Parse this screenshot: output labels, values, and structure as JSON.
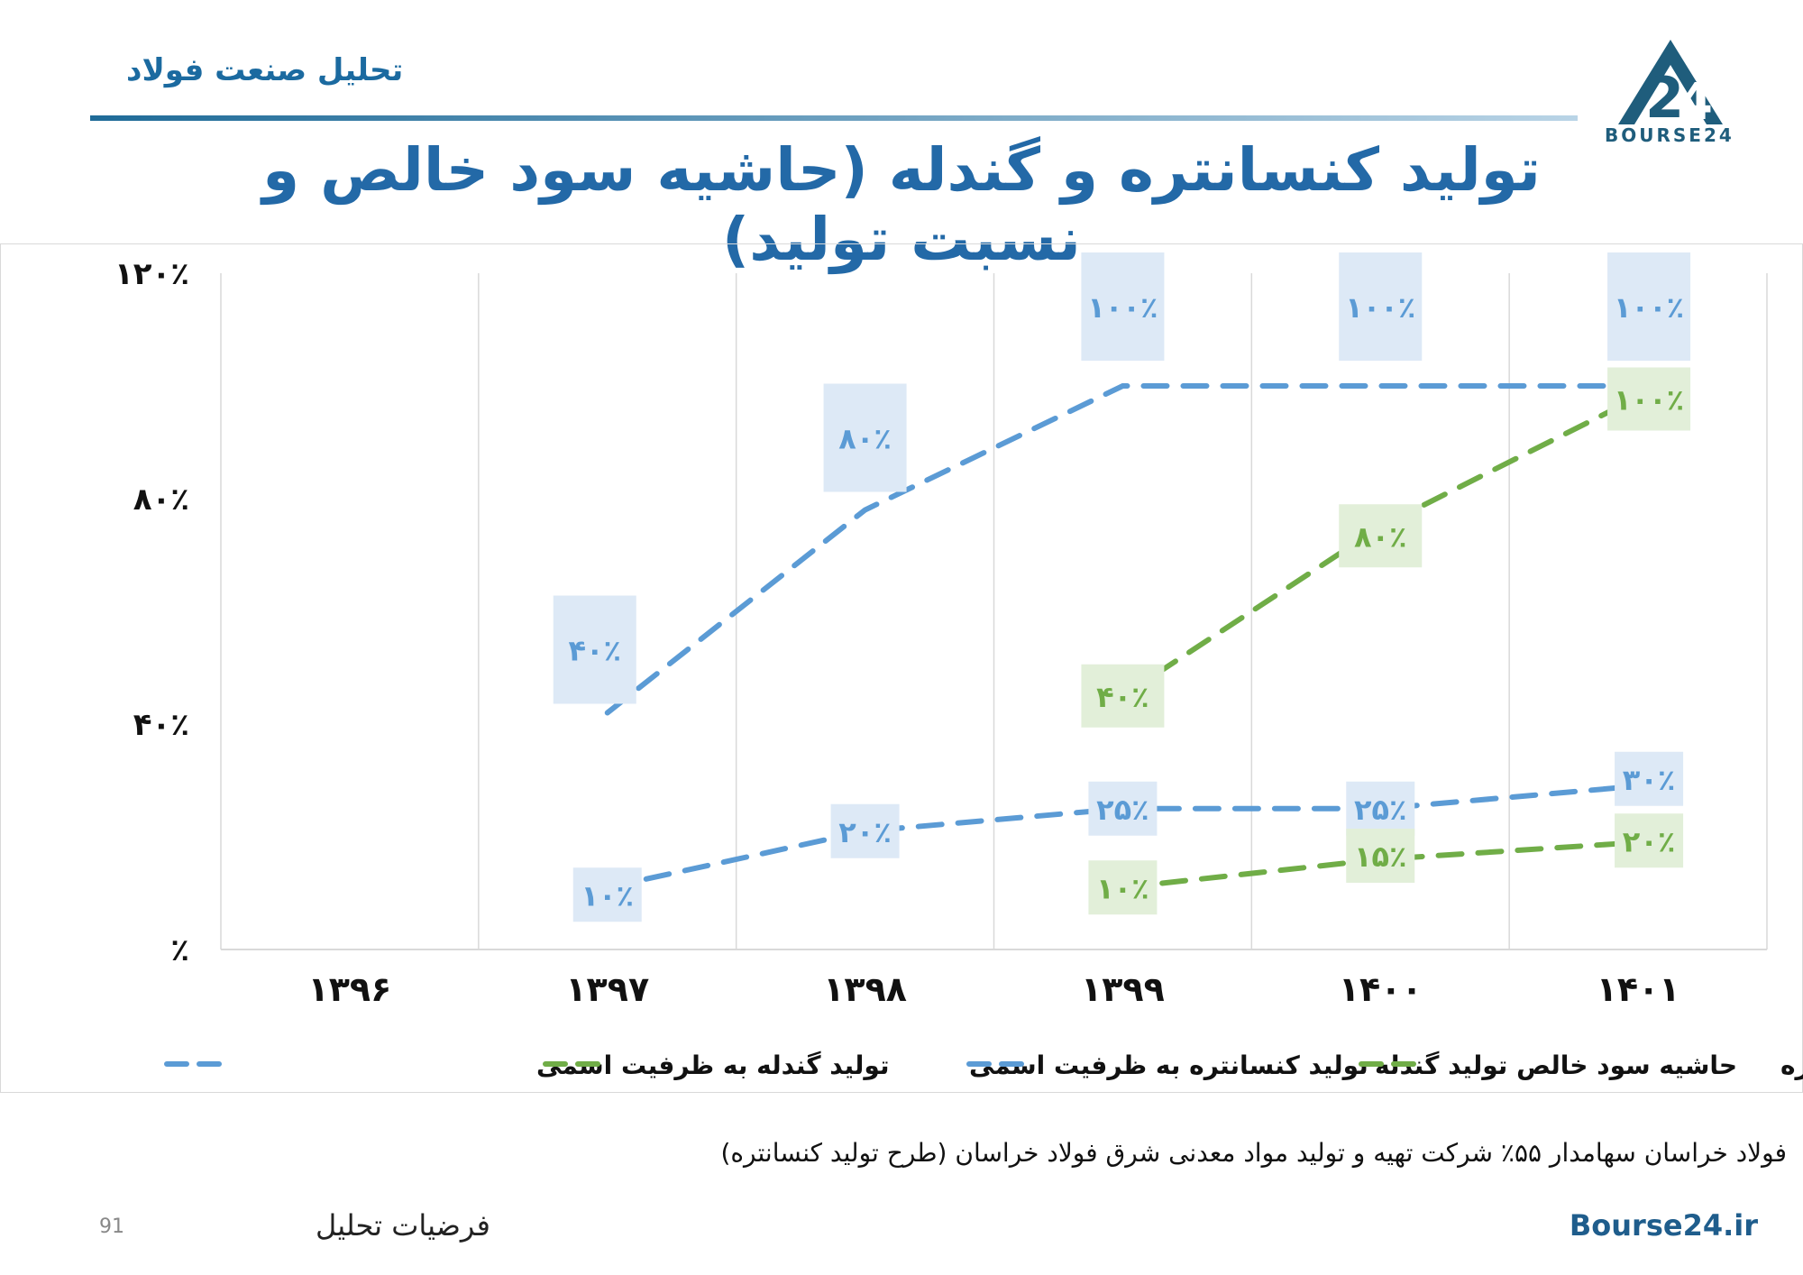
{
  "header": {
    "subtitle": "تحلیل صنعت فولاد",
    "logo_text": "BOURSE24"
  },
  "title": "تولید کنسانتره و گندله (حاشیه سود خالص و نسبت تولید)",
  "colors": {
    "blue": "#5b9bd5",
    "green": "#70ad47",
    "blue_label_bg": "#dde9f6",
    "green_label_bg": "#e2efd9",
    "title": "#2369a7"
  },
  "chart_data": {
    "type": "line",
    "categories": [
      "۱۳۹۶",
      "۱۳۹۷",
      "۱۳۹۸",
      "۱۳۹۹",
      "۱۴۰۰",
      "۱۴۰۱"
    ],
    "y_ticks": [
      "٪",
      "۴۰٪",
      "۸۰٪",
      "۱۲۰٪"
    ],
    "ylim": [
      0,
      120
    ],
    "grid": "vertical",
    "legend_position": "bottom",
    "series": [
      {
        "name": "تولید گندله به ظرفیت اسمی",
        "color": "#5b9bd5",
        "label_bg": "#dde9f6",
        "values": [
          null,
          40,
          80,
          100,
          100,
          100
        ],
        "plot_values": [
          null,
          42,
          78,
          100,
          100,
          100
        ],
        "labels": [
          null,
          "۴۰٪",
          "۸۰٪",
          "۱۰۰٪",
          "۱۰۰٪",
          "۱۰۰٪"
        ]
      },
      {
        "name": "تولید کنسانتره به ظرفیت اسمی",
        "color": "#70ad47",
        "label_bg": "#e2efd9",
        "values": [
          null,
          null,
          null,
          40,
          80,
          100
        ],
        "plot_values": [
          null,
          null,
          null,
          45,
          75,
          98
        ],
        "labels": [
          null,
          null,
          null,
          "۴۰٪",
          "۸۰٪",
          "۱۰۰٪"
        ]
      },
      {
        "name": "حاشیه سود خالص تولید گندله",
        "color": "#5b9bd5",
        "label_bg": "#dde9f6",
        "values": [
          null,
          10,
          20,
          25,
          25,
          30
        ],
        "plot_values": [
          null,
          11,
          21,
          25,
          25,
          29
        ],
        "labels": [
          null,
          "۱۰٪",
          "۲۰٪",
          "۲۵٪",
          "۲۵٪",
          "۳۰٪"
        ]
      },
      {
        "name": "حاشیه سود خالص تولید کنسانتره",
        "color": "#70ad47",
        "label_bg": "#e2efd9",
        "values": [
          null,
          null,
          null,
          10,
          15,
          20
        ],
        "plot_values": [
          null,
          null,
          null,
          11,
          16,
          19
        ],
        "labels": [
          null,
          null,
          null,
          "۱۰٪",
          "۱۵٪",
          "۲۰٪"
        ]
      }
    ]
  },
  "footnote": "فولاد خراسان سهامدار ۵۵٪ شرکت تهیه و تولید مواد معدنی شرق فولاد خراسان (طرح تولید کنسانتره)",
  "footer": {
    "page_number": "91",
    "section": "فرضیات تحلیل",
    "site": "Bourse24.ir"
  }
}
